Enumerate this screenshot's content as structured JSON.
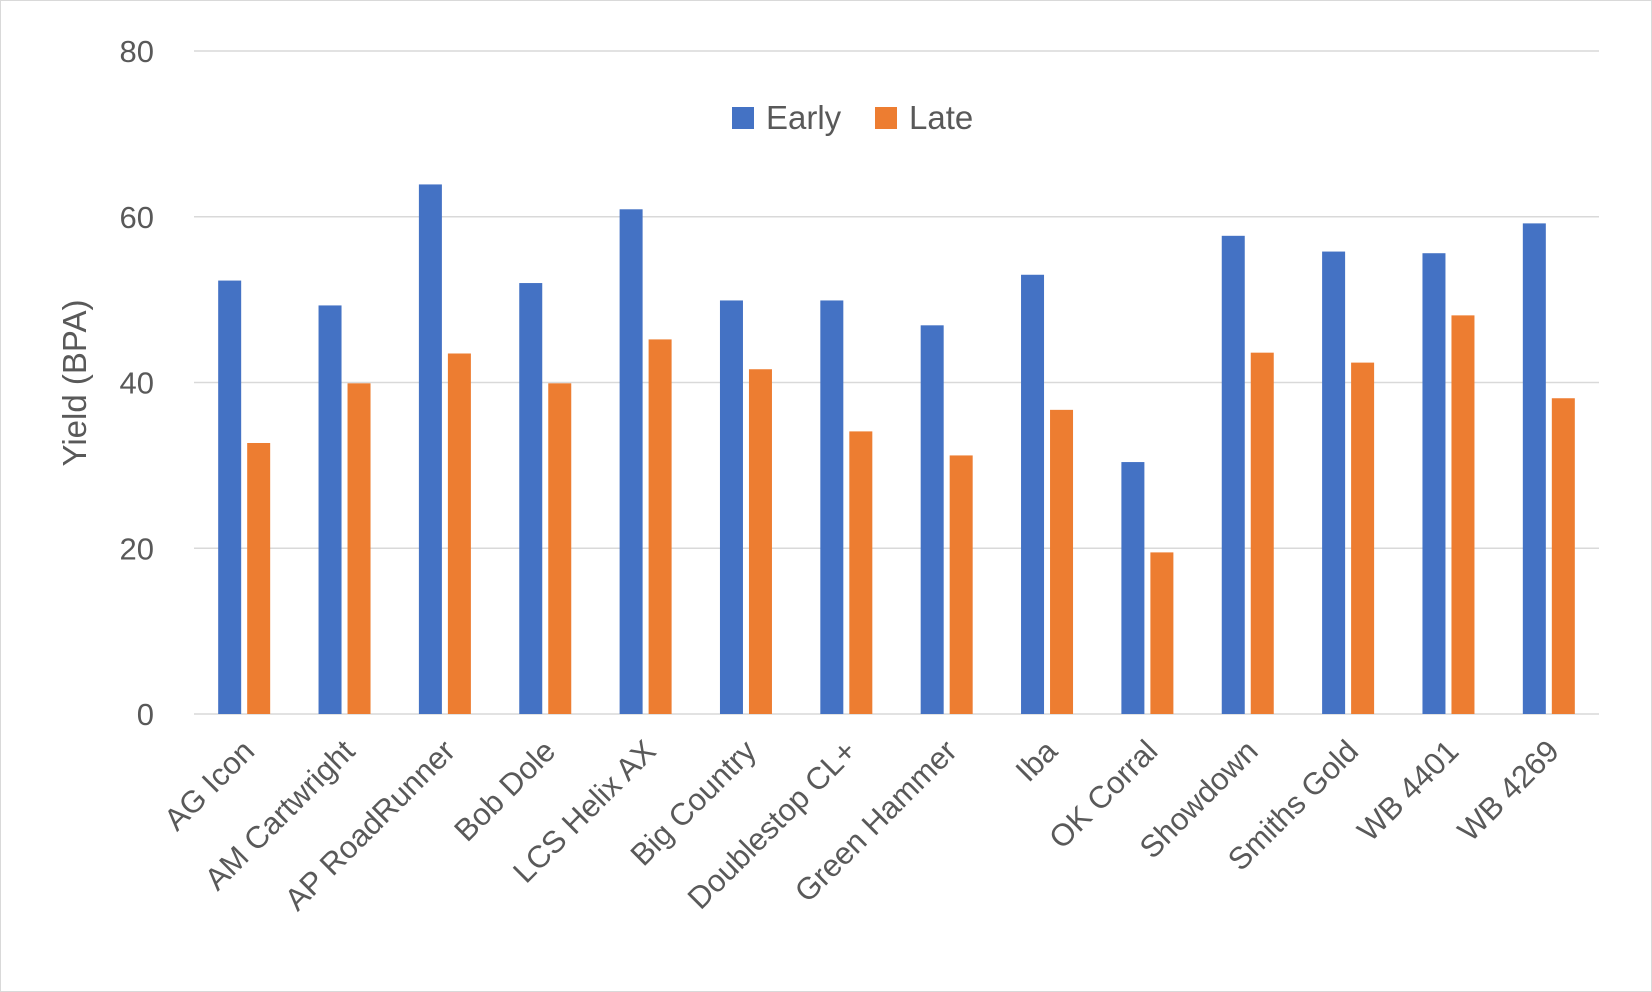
{
  "chart_data": {
    "type": "bar",
    "title": "",
    "xlabel": "",
    "ylabel": "Yield (BPA)",
    "ylim": [
      0,
      80
    ],
    "yticks": [
      0,
      20,
      40,
      60,
      80
    ],
    "grid": true,
    "legend_position": "top-center",
    "categories": [
      "AG Icon",
      "AM Cartwright",
      "AP RoadRunner",
      "Bob Dole",
      "LCS Helix AX",
      "Big Country",
      "Doublestop CL+",
      "Green Hammer",
      "Iba",
      "OK Corral",
      "Showdown",
      "Smiths Gold",
      "WB 4401",
      "WB 4269"
    ],
    "series": [
      {
        "name": "Early",
        "color": "#4472c4",
        "values": [
          52.3,
          49.3,
          63.9,
          52.0,
          60.9,
          49.9,
          49.9,
          46.9,
          53.0,
          30.4,
          57.7,
          55.8,
          55.6,
          59.2
        ]
      },
      {
        "name": "Late",
        "color": "#ed7d31",
        "values": [
          32.7,
          39.9,
          43.5,
          39.9,
          45.2,
          41.6,
          34.1,
          31.2,
          36.7,
          19.5,
          43.6,
          42.4,
          48.1,
          38.1
        ]
      }
    ]
  }
}
